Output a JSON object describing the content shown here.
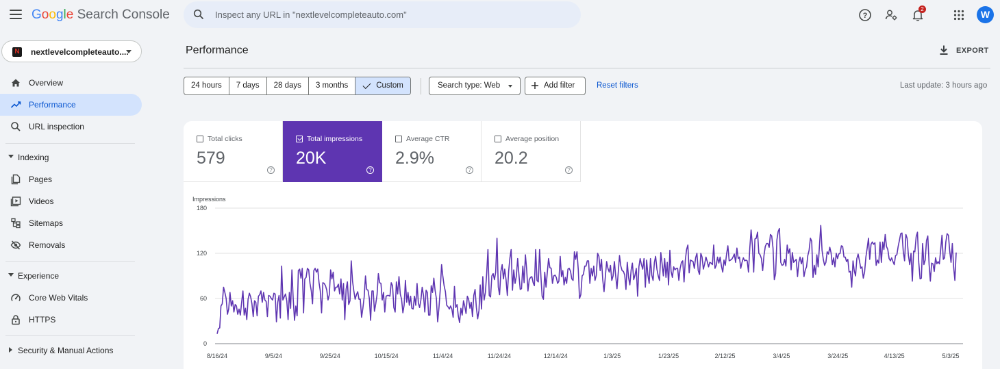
{
  "header": {
    "logo": {
      "google": [
        "G",
        "o",
        "o",
        "g",
        "l",
        "e"
      ],
      "product": "Search Console"
    },
    "search_placeholder": "Inspect any URL in \"nextlevelcompleteauto.com\"",
    "notification_count": "2",
    "avatar_letter": "W"
  },
  "colors": {
    "google_letters": [
      "#4285f4",
      "#ea4335",
      "#fbbc05",
      "#4285f4",
      "#34a853",
      "#ea4335"
    ],
    "accent": "#5e35b1",
    "active_nav_bg": "#d3e3fd",
    "link": "#0b57d0"
  },
  "sidebar": {
    "property_name": "nextlevelcompleteauto....",
    "property_favicon": "N",
    "top_items": [
      {
        "label": "Overview",
        "icon": "home-icon"
      },
      {
        "label": "Performance",
        "icon": "trending-up-icon",
        "active": true
      },
      {
        "label": "URL inspection",
        "icon": "search-icon"
      }
    ],
    "indexing": {
      "title": "Indexing",
      "items": [
        {
          "label": "Pages",
          "icon": "pages-icon"
        },
        {
          "label": "Videos",
          "icon": "video-icon"
        },
        {
          "label": "Sitemaps",
          "icon": "sitemap-icon"
        },
        {
          "label": "Removals",
          "icon": "removals-icon"
        }
      ]
    },
    "experience": {
      "title": "Experience",
      "items": [
        {
          "label": "Core Web Vitals",
          "icon": "gauge-icon"
        },
        {
          "label": "HTTPS",
          "icon": "lock-icon"
        }
      ]
    },
    "security": {
      "title": "Security & Manual Actions"
    }
  },
  "main": {
    "title": "Performance",
    "export_label": "EXPORT",
    "date_ranges": [
      "24 hours",
      "7 days",
      "28 days",
      "3 months",
      "Custom"
    ],
    "date_selected": "Custom",
    "search_type": "Search type: Web",
    "add_filter": "Add filter",
    "reset_filters": "Reset filters",
    "last_update": "Last update: 3 hours ago",
    "metrics": [
      {
        "label": "Total clicks",
        "value": "579",
        "selected": false
      },
      {
        "label": "Total impressions",
        "value": "20K",
        "selected": true
      },
      {
        "label": "Average CTR",
        "value": "2.9%",
        "selected": false
      },
      {
        "label": "Average position",
        "value": "20.2",
        "selected": false
      }
    ]
  },
  "chart_data": {
    "type": "line",
    "ylabel": "Impressions",
    "ylim": [
      0,
      180
    ],
    "yticks": [
      0,
      60,
      120,
      180
    ],
    "xtick_labels": [
      "8/16/24",
      "9/5/24",
      "9/25/24",
      "10/15/24",
      "11/4/24",
      "11/24/24",
      "12/14/24",
      "1/3/25",
      "1/23/25",
      "2/12/25",
      "3/4/25",
      "3/24/25",
      "4/13/25",
      "5/3/25"
    ],
    "grid": "horizontal",
    "series": [
      {
        "color": "#5e35b1",
        "values": [
          13,
          20,
          21,
          50,
          53,
          75,
          68,
          60,
          39,
          46,
          68,
          50,
          57,
          42,
          52,
          50,
          39,
          46,
          38,
          55,
          70,
          38,
          47,
          32,
          59,
          67,
          62,
          53,
          36,
          57,
          55,
          37,
          63,
          65,
          70,
          55,
          68,
          58,
          56,
          36,
          64,
          63,
          60,
          58,
          67,
          66,
          29,
          55,
          64,
          34,
          103,
          58,
          62,
          66,
          57,
          32,
          68,
          47,
          98,
          59,
          31,
          50,
          37,
          97,
          99,
          87,
          100,
          41,
          86,
          88,
          100,
          98,
          80,
          70,
          53,
          97,
          100,
          95,
          99,
          81,
          70,
          41,
          81,
          80,
          77,
          71,
          58,
          65,
          98,
          86,
          95,
          70,
          75,
          75,
          79,
          66,
          86,
          58,
          80,
          32,
          72,
          82,
          52,
          57,
          110,
          83,
          70,
          59,
          65,
          69,
          59,
          59,
          35,
          47,
          62,
          90,
          72,
          71,
          60,
          31,
          70,
          70,
          43,
          53,
          65,
          93,
          81,
          80,
          58,
          68,
          42,
          63,
          64,
          64,
          63,
          81,
          77,
          48,
          42,
          82,
          66,
          89,
          66,
          59,
          41,
          51,
          84,
          55,
          68,
          51,
          63,
          47,
          46,
          63,
          51,
          80,
          54,
          48,
          58,
          75,
          64,
          42,
          71,
          68,
          38,
          38,
          77,
          68,
          87,
          71,
          60,
          29,
          48,
          72,
          105,
          90,
          77,
          69,
          51,
          49,
          46,
          50,
          46,
          35,
          76,
          48,
          52,
          37,
          28,
          47,
          38,
          57,
          50,
          40,
          63,
          59,
          47,
          55,
          36,
          64,
          72,
          48,
          33,
          44,
          78,
          46,
          89,
          58,
          68,
          94,
          125,
          64,
          62,
          90,
          93,
          85,
          95,
          140,
          75,
          65,
          96,
          105,
          86,
          99,
          85,
          64,
          96,
          114,
          125,
          71,
          98,
          80,
          90,
          113,
          92,
          72,
          73,
          103,
          81,
          118,
          99,
          70,
          85,
          88,
          89,
          81,
          77,
          125,
          84,
          82,
          125,
          90,
          63,
          59,
          95,
          75,
          95,
          113,
          101,
          100,
          80,
          90,
          91,
          88,
          80,
          83,
          116,
          89,
          97,
          78,
          88,
          80,
          99,
          100,
          96,
          86,
          84,
          122,
          112,
          122,
          98,
          60,
          65,
          90,
          92,
          103,
          103,
          110,
          110,
          80,
          100,
          90,
          103,
          84,
          91,
          120,
          116,
          97,
          112,
          85,
          69,
          89,
          109,
          100,
          95,
          104,
          84,
          90,
          109,
          90,
          73,
          94,
          117,
          103,
          97,
          96,
          91,
          72,
          108,
          88,
          78,
          98,
          107,
          85,
          91,
          100,
          63,
          102,
          113,
          105,
          99,
          113,
          75,
          111,
          91,
          80,
          113,
          91,
          84,
          108,
          116,
          99,
          90,
          84,
          121,
          106,
          90,
          113,
          88,
          108,
          78,
          124,
          96,
          88,
          102,
          98,
          100,
          100,
          84,
          100,
          108,
          110,
          82,
          111,
          125,
          131,
          94,
          111,
          110,
          109,
          100,
          114,
          120,
          97,
          92,
          120,
          115,
          99,
          106,
          115,
          109,
          102,
          108,
          107,
          105,
          131,
          100,
          104,
          115,
          107,
          115,
          103,
          95,
          111,
          104,
          119,
          130,
          110,
          111,
          112,
          115,
          119,
          108,
          127,
          113,
          115,
          100,
          108,
          114,
          110,
          111,
          110,
          95,
          127,
          151,
          130,
          95,
          139,
          140,
          148,
          120,
          118,
          113,
          97,
          117,
          129,
          133,
          133,
          128,
          145,
          143,
          127,
          85,
          93,
          138,
          149,
          153,
          108,
          104,
          105,
          112,
          103,
          131,
          120,
          126,
          98,
          121,
          108,
          110,
          112,
          89,
          108,
          115,
          106,
          114,
          89,
          98,
          102,
          117,
          124,
          140,
          136,
          88,
          104,
          92,
          118,
          102,
          130,
          157,
          124,
          112,
          104,
          108,
          122,
          119,
          128,
          121,
          105,
          114,
          102,
          120,
          113,
          119,
          120,
          130,
          129,
          115,
          115,
          109,
          112,
          95,
          96,
          75,
          110,
          97,
          90,
          113,
          119,
          110,
          100,
          102,
          87,
          95,
          115,
          127,
          140,
          112,
          132,
          135,
          132,
          134,
          104,
          111,
          107,
          135,
          108,
          135,
          125,
          145,
          129,
          125,
          113,
          110,
          114,
          109,
          105,
          117,
          118,
          129,
          137,
          146,
          147,
          122,
          110,
          145,
          140,
          117,
          105,
          120,
          83,
          123,
          122,
          142,
          148,
          108,
          86,
          87,
          133,
          105,
          111,
          137,
          143,
          105,
          83,
          107,
          106,
          96,
          114,
          106,
          109,
          106,
          125,
          144,
          112,
          114,
          135,
          146,
          144,
          123,
          108,
          133,
          103,
          84,
          121
        ]
      }
    ]
  }
}
